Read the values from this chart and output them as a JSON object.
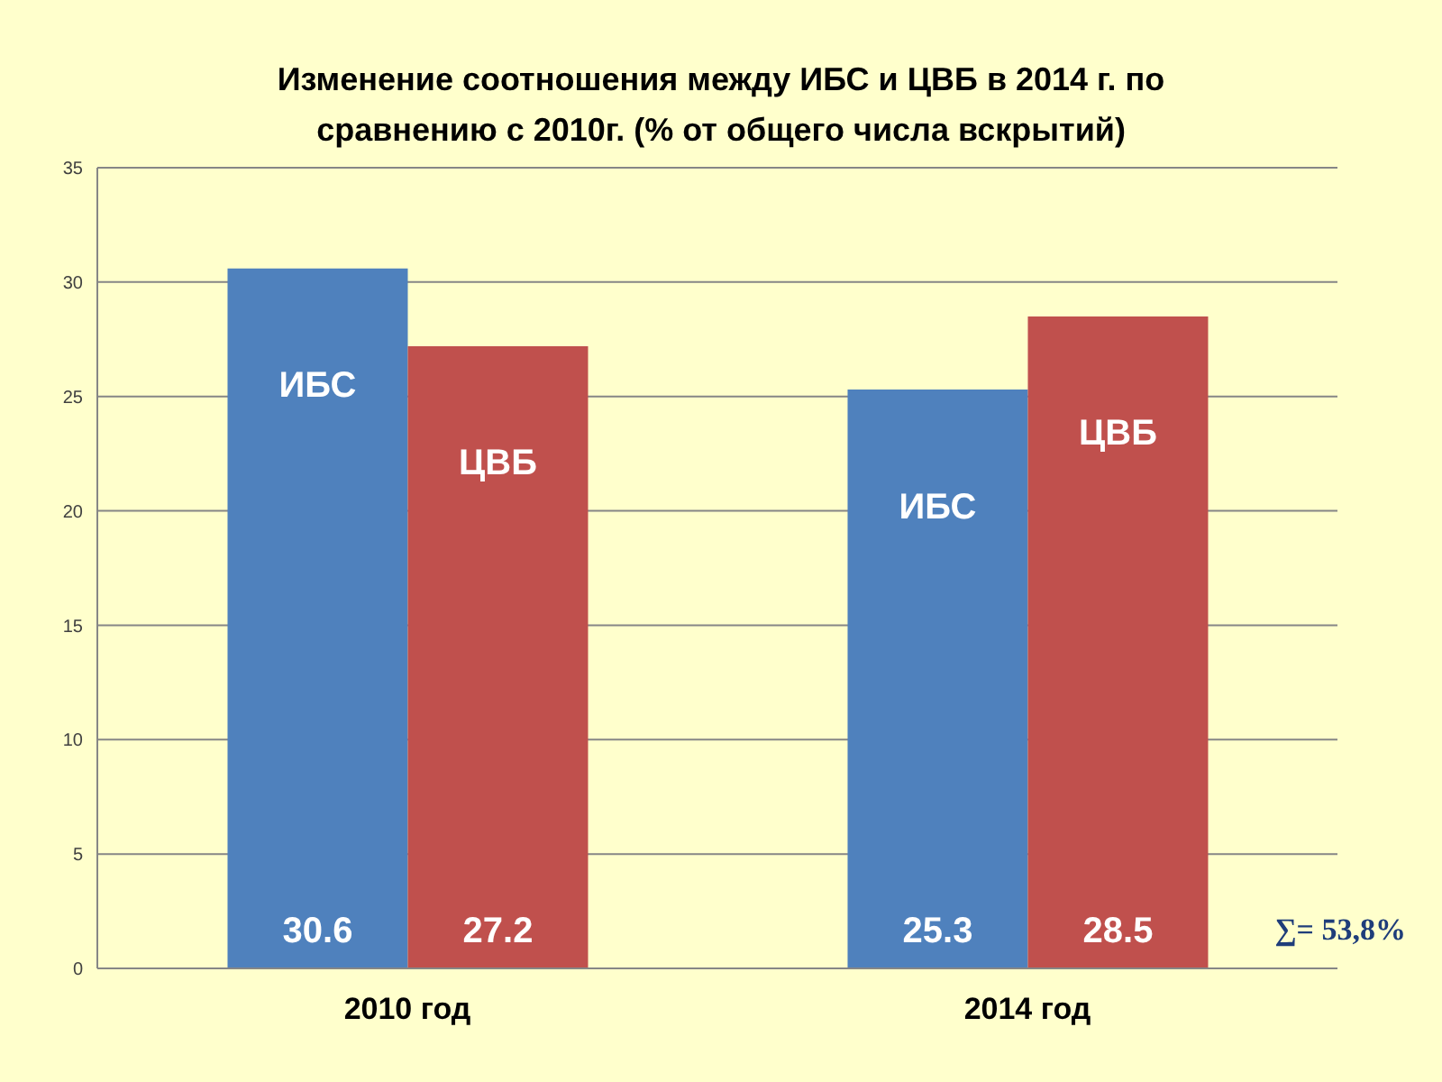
{
  "chart_data": {
    "type": "bar",
    "title": "Изменение соотношения между ИБС и ЦВБ в 2014 г. по сравнению с 2010г. (% от общего числа вскрытий)",
    "categories": [
      "2010 год",
      "2014 год"
    ],
    "series": [
      {
        "name": "ИБС",
        "color": "#4f81bd",
        "values": [
          30.6,
          25.3
        ]
      },
      {
        "name": "ЦВБ",
        "color": "#c0504d",
        "values": [
          27.2,
          28.5
        ]
      }
    ],
    "ylim": [
      0,
      35
    ],
    "yticks": [
      0,
      5,
      10,
      15,
      20,
      25,
      30,
      35
    ],
    "grid": "y",
    "data_labels": true,
    "annotations": [
      "∑= 53,8%"
    ]
  }
}
